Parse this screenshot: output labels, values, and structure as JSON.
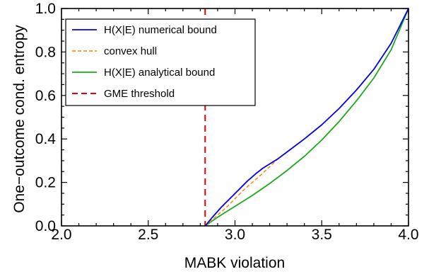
{
  "chart_data": {
    "type": "line",
    "title": "",
    "xlabel": "MABK violation",
    "ylabel": "One−outcome cond. entropy",
    "xlim": [
      2.0,
      4.0
    ],
    "ylim": [
      0.0,
      1.0
    ],
    "x_ticks": [
      "2.0",
      "2.5",
      "3.0",
      "3.5",
      "4.0"
    ],
    "y_ticks": [
      "0.0",
      "0.2",
      "0.4",
      "0.6",
      "0.8",
      "1.0"
    ],
    "grid": false,
    "legend_position": "top-left",
    "series": [
      {
        "name": "H(X|E) numerical bound",
        "color": "#0000e6",
        "style": "solid",
        "x": [
          2.828,
          2.87,
          2.92,
          2.97,
          3.02,
          3.07,
          3.12,
          3.16,
          3.2,
          3.25,
          3.3,
          3.4,
          3.5,
          3.6,
          3.7,
          3.8,
          3.9,
          4.0
        ],
        "y": [
          0.0,
          0.04,
          0.085,
          0.125,
          0.165,
          0.205,
          0.24,
          0.265,
          0.285,
          0.31,
          0.34,
          0.4,
          0.465,
          0.54,
          0.625,
          0.72,
          0.84,
          1.0
        ]
      },
      {
        "name": "convex hull",
        "color": "#ff8c1a",
        "style": "dashed",
        "x": [
          2.828,
          2.95,
          3.05,
          3.15,
          3.25
        ],
        "y": [
          0.0,
          0.085,
          0.165,
          0.235,
          0.31
        ]
      },
      {
        "name": "H(X|E) analytical bound",
        "color": "#1aaa1a",
        "style": "solid",
        "x": [
          2.828,
          2.9,
          3.0,
          3.1,
          3.2,
          3.3,
          3.4,
          3.5,
          3.6,
          3.7,
          3.8,
          3.9,
          4.0
        ],
        "y": [
          0.0,
          0.04,
          0.09,
          0.14,
          0.195,
          0.255,
          0.32,
          0.395,
          0.48,
          0.575,
          0.68,
          0.81,
          1.0
        ]
      }
    ],
    "threshold": {
      "name": "GME threshold",
      "color": "#e60000",
      "style": "dashed",
      "x": 2.828
    }
  }
}
